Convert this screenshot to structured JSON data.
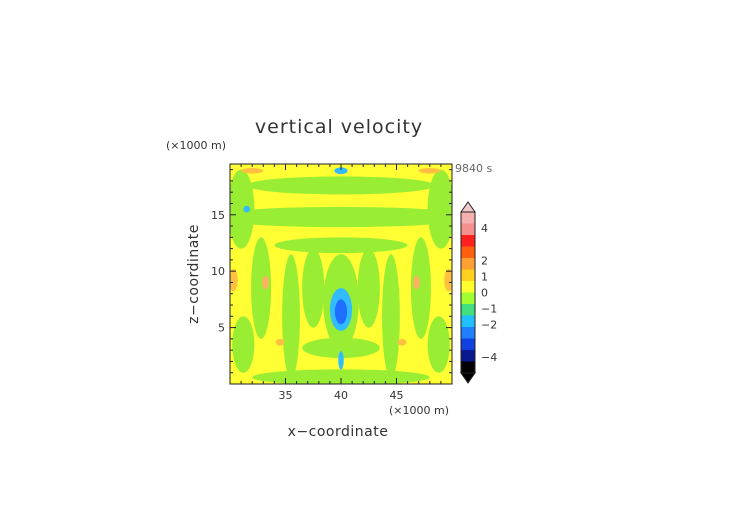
{
  "chart_data": {
    "type": "heatmap",
    "title": "vertical velocity",
    "time_label": "9840 s",
    "xlabel": "x−coordinate",
    "ylabel": "z−coordinate",
    "x_unit": "(×1000 m)",
    "y_unit": "(×1000 m)",
    "xlim": [
      30,
      50
    ],
    "ylim": [
      0,
      19.5
    ],
    "x_ticks": [
      35,
      40,
      45
    ],
    "y_ticks": [
      5,
      10,
      15
    ],
    "colorbar": {
      "ticks": [
        4,
        2,
        1,
        0,
        -1,
        -2,
        -4
      ],
      "tick_labels": [
        "4",
        "2",
        "1",
        "0",
        "−1",
        "−2",
        "−4"
      ],
      "range": [
        -5,
        5
      ],
      "extend": "both",
      "colors_top_to_bottom": [
        "#f5b0b0",
        "#f59090",
        "#ff2020",
        "#ff6010",
        "#ffa030",
        "#ffd020",
        "#ffff30",
        "#a0ff30",
        "#40e080",
        "#20c0ff",
        "#2080ff",
        "#1040e0",
        "#0a1890",
        "#000000"
      ]
    },
    "field_colors": {
      "background": "#ffff33",
      "weak_negative": "#99ee33",
      "weak_positive": "#ffc040",
      "negative_core": "#1e6fff",
      "negative_mid": "#33bbff",
      "positive_weak_red": "#ffb060"
    }
  }
}
